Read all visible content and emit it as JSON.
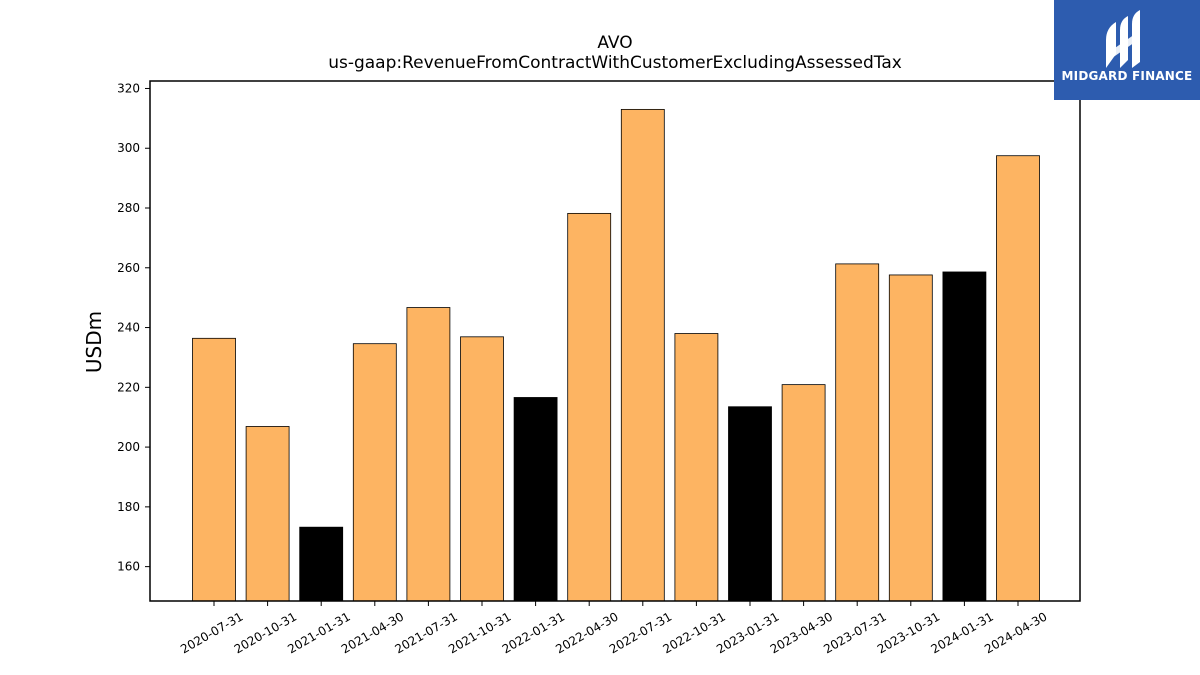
{
  "logo": {
    "text": "MIDGARD FINANCE",
    "icon": "midgard-logo-icon",
    "background": "#2d5caf"
  },
  "chart_data": {
    "type": "bar",
    "title": "AVO",
    "subtitle": "us-gaap:RevenueFromContractWithCustomerExcludingAssessedTax",
    "xlabel": "",
    "ylabel": "USDm",
    "ylim": [
      148.5,
      322.5
    ],
    "yticks": [
      160,
      180,
      200,
      220,
      240,
      260,
      280,
      300,
      320
    ],
    "grid": false,
    "categories": [
      "2020-07-31",
      "2020-10-31",
      "2021-01-31",
      "2021-04-30",
      "2021-07-31",
      "2021-10-31",
      "2022-01-31",
      "2022-04-30",
      "2022-07-31",
      "2022-10-31",
      "2023-01-31",
      "2023-04-30",
      "2023-07-31",
      "2023-10-31",
      "2024-01-31",
      "2024-04-30"
    ],
    "values": [
      236.4,
      206.9,
      173.2,
      234.6,
      246.7,
      236.9,
      216.6,
      278.2,
      313.0,
      238.0,
      213.5,
      220.9,
      261.3,
      257.6,
      258.6,
      297.5
    ],
    "bar_colors": [
      "#fdb462",
      "#fdb462",
      "#000000",
      "#fdb462",
      "#fdb462",
      "#fdb462",
      "#000000",
      "#fdb462",
      "#fdb462",
      "#fdb462",
      "#000000",
      "#fdb462",
      "#fdb462",
      "#fdb462",
      "#000000",
      "#fdb462"
    ]
  }
}
